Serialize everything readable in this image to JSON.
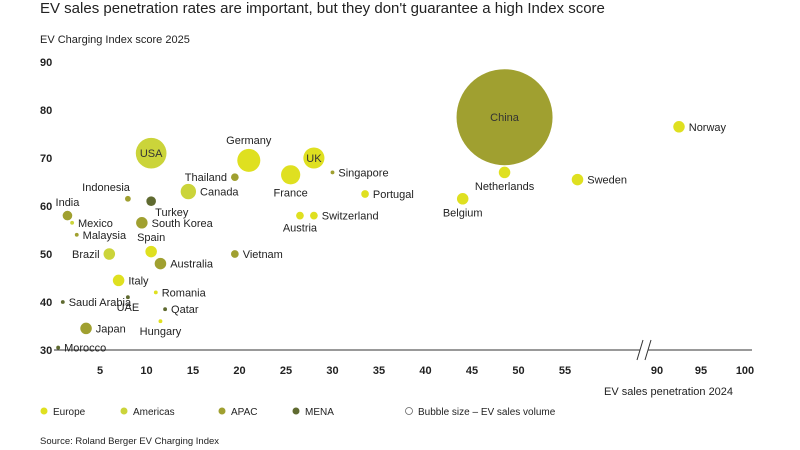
{
  "chart_data": {
    "type": "scatter",
    "title": "EV sales penetration rates are important, but they don't guarantee a high Index score",
    "ylabel": "EV Charging Index score 2025",
    "xlabel": "EV sales penetration 2024",
    "xlim": [
      0,
      100
    ],
    "ylim": [
      30,
      90
    ],
    "x_axis_break": [
      65,
      85
    ],
    "x_ticks": [
      5,
      10,
      15,
      20,
      25,
      30,
      35,
      40,
      45,
      50,
      55,
      90,
      95,
      100
    ],
    "y_ticks": [
      30,
      40,
      50,
      60,
      70,
      80,
      90
    ],
    "colors": {
      "Europe": "#dfe020",
      "Americas": "#cbd43a",
      "APAC": "#a0a030",
      "MENA": "#5f6a30"
    },
    "legend": {
      "items": [
        "Europe",
        "Americas",
        "APAC",
        "MENA"
      ],
      "size_note": "Bubble size – EV sales volume",
      "position": "bottom"
    },
    "source": "Source: Roland Berger EV Charging Index",
    "points": [
      {
        "label": "China",
        "x": 48.5,
        "y": 78.5,
        "region": "APAC",
        "size": 50,
        "label_pos": "inside"
      },
      {
        "label": "Norway",
        "x": 92.5,
        "y": 76.5,
        "region": "Europe",
        "size": 6,
        "label_pos": "right"
      },
      {
        "label": "USA",
        "x": 10.5,
        "y": 71,
        "region": "Americas",
        "size": 16,
        "label_pos": "inside"
      },
      {
        "label": "Germany",
        "x": 21,
        "y": 69.5,
        "region": "Europe",
        "size": 12,
        "label_pos": "above"
      },
      {
        "label": "UK",
        "x": 28,
        "y": 70,
        "region": "Europe",
        "size": 11,
        "label_pos": "inside"
      },
      {
        "label": "France",
        "x": 25.5,
        "y": 66.5,
        "region": "Europe",
        "size": 10,
        "label_pos": "below"
      },
      {
        "label": "Singapore",
        "x": 30,
        "y": 67,
        "region": "APAC",
        "size": 2,
        "label_pos": "right"
      },
      {
        "label": "Thailand",
        "x": 19.5,
        "y": 66,
        "region": "APAC",
        "size": 4,
        "label_pos": "left"
      },
      {
        "label": "Sweden",
        "x": 60,
        "y": 65.5,
        "region": "Europe",
        "size": 6,
        "label_pos": "right"
      },
      {
        "label": "Netherlands",
        "x": 48.5,
        "y": 67,
        "region": "Europe",
        "size": 6,
        "label_pos": "below"
      },
      {
        "label": "Canada",
        "x": 14.5,
        "y": 63,
        "region": "Americas",
        "size": 8,
        "label_pos": "right"
      },
      {
        "label": "Portugal",
        "x": 33.5,
        "y": 62.5,
        "region": "Europe",
        "size": 4,
        "label_pos": "right"
      },
      {
        "label": "Indonesia",
        "x": 8,
        "y": 61.5,
        "region": "APAC",
        "size": 3,
        "label_pos": "above-left"
      },
      {
        "label": "Turkey",
        "x": 10.5,
        "y": 61,
        "region": "MENA",
        "size": 5,
        "label_pos": "below-right"
      },
      {
        "label": "Belgium",
        "x": 44,
        "y": 61.5,
        "region": "Europe",
        "size": 6,
        "label_pos": "below"
      },
      {
        "label": "India",
        "x": 1.5,
        "y": 58,
        "region": "APAC",
        "size": 5,
        "label_pos": "above"
      },
      {
        "label": "Austria",
        "x": 26.5,
        "y": 58,
        "region": "Europe",
        "size": 4,
        "label_pos": "below"
      },
      {
        "label": "Switzerland",
        "x": 28,
        "y": 58,
        "region": "Europe",
        "size": 4,
        "label_pos": "right"
      },
      {
        "label": "South Korea",
        "x": 9.5,
        "y": 56.5,
        "region": "APAC",
        "size": 6,
        "label_pos": "right"
      },
      {
        "label": "Mexico",
        "x": 2,
        "y": 56.5,
        "region": "Americas",
        "size": 2,
        "label_pos": "right"
      },
      {
        "label": "Malaysia",
        "x": 2.5,
        "y": 54,
        "region": "APAC",
        "size": 2,
        "label_pos": "right"
      },
      {
        "label": "Spain",
        "x": 10.5,
        "y": 50.5,
        "region": "Europe",
        "size": 6,
        "label_pos": "above"
      },
      {
        "label": "Brazil",
        "x": 6,
        "y": 50,
        "region": "Americas",
        "size": 6,
        "label_pos": "left"
      },
      {
        "label": "Australia",
        "x": 11.5,
        "y": 48,
        "region": "APAC",
        "size": 6,
        "label_pos": "right"
      },
      {
        "label": "Vietnam",
        "x": 19.5,
        "y": 50,
        "region": "APAC",
        "size": 4,
        "label_pos": "right"
      },
      {
        "label": "Italy",
        "x": 7,
        "y": 44.5,
        "region": "Europe",
        "size": 6,
        "label_pos": "right"
      },
      {
        "label": "Romania",
        "x": 11,
        "y": 42,
        "region": "Europe",
        "size": 2,
        "label_pos": "right"
      },
      {
        "label": "Saudi Arabia",
        "x": 1,
        "y": 40,
        "region": "MENA",
        "size": 2,
        "label_pos": "right"
      },
      {
        "label": "UAE",
        "x": 8,
        "y": 41,
        "region": "MENA",
        "size": 2,
        "label_pos": "below"
      },
      {
        "label": "Qatar",
        "x": 12,
        "y": 38.5,
        "region": "MENA",
        "size": 2,
        "label_pos": "right"
      },
      {
        "label": "Hungary",
        "x": 11.5,
        "y": 36,
        "region": "Europe",
        "size": 2,
        "label_pos": "below"
      },
      {
        "label": "Japan",
        "x": 3.5,
        "y": 34.5,
        "region": "APAC",
        "size": 6,
        "label_pos": "right"
      },
      {
        "label": "Morocco",
        "x": 0.5,
        "y": 30.5,
        "region": "MENA",
        "size": 2,
        "label_pos": "right"
      }
    ]
  }
}
